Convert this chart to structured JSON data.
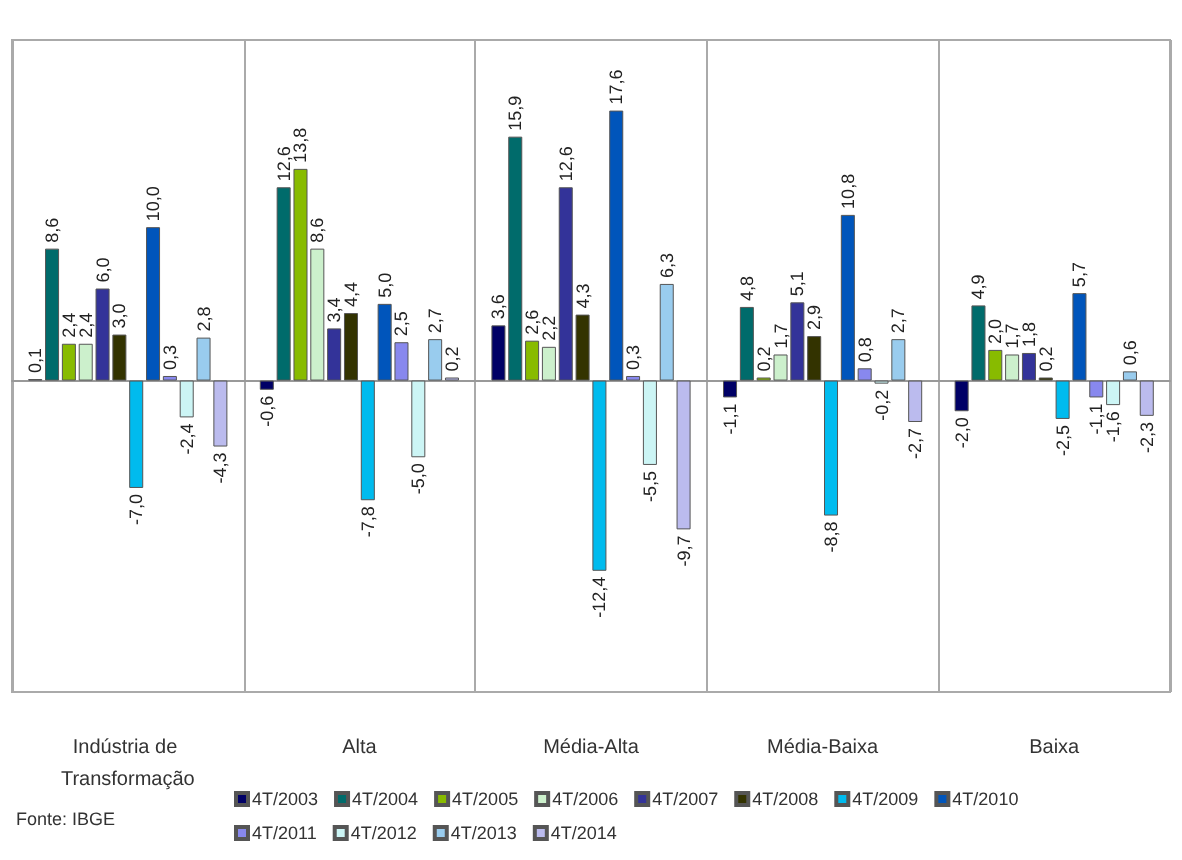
{
  "chart_data": {
    "type": "bar",
    "categories": [
      "Indústria de Transformação",
      "Alta",
      "Média-Alta",
      "Média-Baixa",
      "Baixa"
    ],
    "ylim": [
      -20.3,
      22.2
    ],
    "tick_labels": "x",
    "grid": "x",
    "legend": "bottom",
    "annotations": [
      "Fonte: IBGE"
    ],
    "series": [
      {
        "name": "4T/2003",
        "color": "#000066",
        "values": [
          0.1,
          -0.6,
          3.6,
          -1.1,
          -2.0
        ],
        "value_labels": [
          "0,1",
          "-0,6",
          "3,6",
          "-1,1",
          "-2,0"
        ]
      },
      {
        "name": "4T/2004",
        "color": "#006b6b",
        "values": [
          8.6,
          12.6,
          15.9,
          4.8,
          4.9
        ],
        "value_labels": [
          "8,6",
          "12,6",
          "15,9",
          "4,8",
          "4,9"
        ]
      },
      {
        "name": "4T/2005",
        "color": "#88bb00",
        "values": [
          2.4,
          13.8,
          2.6,
          0.2,
          2.0
        ],
        "value_labels": [
          "2,4",
          "13,8",
          "2,6",
          "0,2",
          "2,0"
        ]
      },
      {
        "name": "4T/2006",
        "color": "#ccf0cc",
        "values": [
          2.4,
          8.6,
          2.2,
          1.7,
          1.7
        ],
        "value_labels": [
          "2,4",
          "8,6",
          "2,2",
          "1,7",
          "1,7"
        ]
      },
      {
        "name": "4T/2007",
        "color": "#333399",
        "values": [
          6.0,
          3.4,
          12.6,
          5.1,
          1.8
        ],
        "value_labels": [
          "6,0",
          "3,4",
          "12,6",
          "5,1",
          "1,8"
        ]
      },
      {
        "name": "4T/2008",
        "color": "#333300",
        "values": [
          3.0,
          4.4,
          4.3,
          2.9,
          0.2
        ],
        "value_labels": [
          "3,0",
          "4,4",
          "4,3",
          "2,9",
          "0,2"
        ]
      },
      {
        "name": "4T/2009",
        "color": "#00bbee",
        "values": [
          -7.0,
          -7.8,
          -12.4,
          -8.8,
          -2.5
        ],
        "value_labels": [
          "-7,0",
          "-7,8",
          "-12,4",
          "-8,8",
          "-2,5"
        ]
      },
      {
        "name": "4T/2010",
        "color": "#0055bb",
        "values": [
          10.0,
          5.0,
          17.6,
          10.8,
          5.7
        ],
        "value_labels": [
          "10,0",
          "5,0",
          "17,6",
          "10,8",
          "5,7"
        ]
      },
      {
        "name": "4T/2011",
        "color": "#8888ee",
        "values": [
          0.3,
          2.5,
          0.3,
          0.8,
          -1.1
        ],
        "value_labels": [
          "0,3",
          "2,5",
          "0,3",
          "0,8",
          "-1,1"
        ]
      },
      {
        "name": "4T/2012",
        "color": "#ccf5f5",
        "values": [
          -2.4,
          -5.0,
          -5.5,
          -0.2,
          -1.6
        ],
        "value_labels": [
          "-2,4",
          "-5,0",
          "-5,5",
          "-0,2",
          "-1,6"
        ]
      },
      {
        "name": "4T/2013",
        "color": "#99ccee",
        "values": [
          2.8,
          2.7,
          6.3,
          2.7,
          0.6
        ],
        "value_labels": [
          "2,8",
          "2,7",
          "6,3",
          "2,7",
          "0,6"
        ]
      },
      {
        "name": "4T/2014",
        "color": "#bbbbee",
        "values": [
          -4.3,
          0.2,
          -9.7,
          -2.7,
          -2.3
        ],
        "value_labels": [
          "-4,3",
          "0,2",
          "-9,7",
          "-2,7",
          "-2,3"
        ]
      }
    ]
  }
}
